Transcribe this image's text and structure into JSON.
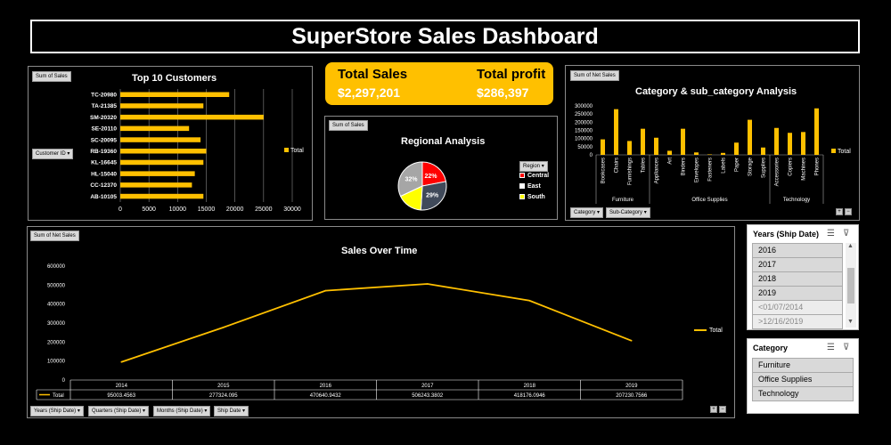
{
  "dashboard": {
    "title": "SuperStore Sales Dashboard"
  },
  "kpis": {
    "total_sales_label": "Total Sales",
    "total_sales_value": "$2,297,201",
    "total_profit_label": "Total profit",
    "total_profit_value": "$286,397"
  },
  "top_customers": {
    "field_button": "Sum of Sales",
    "row_field_button": "Customer ID",
    "legend": "Total",
    "chart_data": {
      "type": "bar",
      "title": "Top 10 Customers",
      "categories": [
        "TC-20980",
        "TA-21385",
        "SM-20320",
        "SE-20110",
        "SC-20095",
        "RB-19360",
        "KL-16645",
        "HL-15040",
        "CC-12370",
        "AB-10105"
      ],
      "series": [
        {
          "name": "Total",
          "values": [
            19000,
            14500,
            25000,
            12000,
            14000,
            15000,
            14500,
            13000,
            12500,
            14500
          ]
        }
      ],
      "xlim": [
        0,
        30000
      ],
      "xticks": [
        "0",
        "5000",
        "10000",
        "15000",
        "20000",
        "25000",
        "30000"
      ],
      "bar_color": "#ffc000",
      "grid": true,
      "legend_position": "right"
    }
  },
  "regional": {
    "field_button": "Sum of Sales",
    "legend_title": "Region",
    "chart_data": {
      "type": "pie",
      "title": "Regional Analysis",
      "labels": [
        "Central",
        "East",
        "South",
        "West"
      ],
      "values": [
        22,
        29,
        17,
        32
      ],
      "data_labels": [
        "22%",
        "29%",
        "",
        "32%"
      ],
      "colors": [
        "#ff0000",
        "#404a5a",
        "#ffff00",
        "#a6a6a6"
      ],
      "legend_labels": [
        "Central",
        "East",
        "South"
      ],
      "legend_colors": [
        "#ff0000",
        "#ffffff",
        "#ffff00"
      ],
      "legend_position": "right"
    }
  },
  "category": {
    "field_button": "Sum of Net Sales",
    "filter_buttons": [
      "Category",
      "Sub-Category"
    ],
    "legend": "Total",
    "chart_data": {
      "type": "bar",
      "title": "Category & sub_category Analysis",
      "categories": [
        "Bookcases",
        "Chairs",
        "Furnishings",
        "Tables",
        "Appliances",
        "Art",
        "Binders",
        "Envelopes",
        "Fasteners",
        "Labels",
        "Paper",
        "Storage",
        "Supplies",
        "Accessories",
        "Copiers",
        "Machines",
        "Phones"
      ],
      "groups": [
        {
          "name": "Furniture",
          "count": 4
        },
        {
          "name": "Office Supplies",
          "count": 9
        },
        {
          "name": "Technology",
          "count": 4
        }
      ],
      "series": [
        {
          "name": "Total",
          "values": [
            95000,
            280000,
            85000,
            160000,
            105000,
            25000,
            160000,
            15000,
            3000,
            12000,
            75000,
            215000,
            45000,
            165000,
            135000,
            140000,
            285000
          ]
        }
      ],
      "ylim": [
        0,
        300000
      ],
      "yticks": [
        "0",
        "50000",
        "100000",
        "150000",
        "200000",
        "250000",
        "300000"
      ],
      "bar_color": "#ffc000",
      "legend_position": "right"
    }
  },
  "sales_time": {
    "field_button": "Sum of Net Sales",
    "filter_buttons": [
      "Years (Ship Date)",
      "Quarters (Ship Date)",
      "Months (Ship Date)",
      "Ship Date"
    ],
    "legend": "Total",
    "table_label": "Total",
    "chart_data": {
      "type": "line",
      "title": "Sales Over Time",
      "x": [
        "2014",
        "2015",
        "2016",
        "2017",
        "2018",
        "2019"
      ],
      "series": [
        {
          "name": "Total",
          "values": [
            95003.4563,
            277324.095,
            470640.9432,
            506243.3802,
            418176.0946,
            207230.7566
          ]
        }
      ],
      "value_labels": [
        "95003.4563",
        "277324.095",
        "470640.9432",
        "506243.3802",
        "418176.0946",
        "207230.7566"
      ],
      "ylim": [
        0,
        600000
      ],
      "yticks": [
        "0",
        "100000",
        "200000",
        "300000",
        "400000",
        "500000",
        "600000"
      ],
      "line_color": "#ffc000",
      "legend_position": "right"
    }
  },
  "years_slicer": {
    "title": "Years (Ship Date)",
    "items": [
      "2016",
      "2017",
      "2018",
      "2019",
      "<01/07/2014",
      ">12/16/2019"
    ]
  },
  "category_slicer": {
    "title": "Category",
    "items": [
      "Furniture",
      "Office Supplies",
      "Technology"
    ]
  }
}
